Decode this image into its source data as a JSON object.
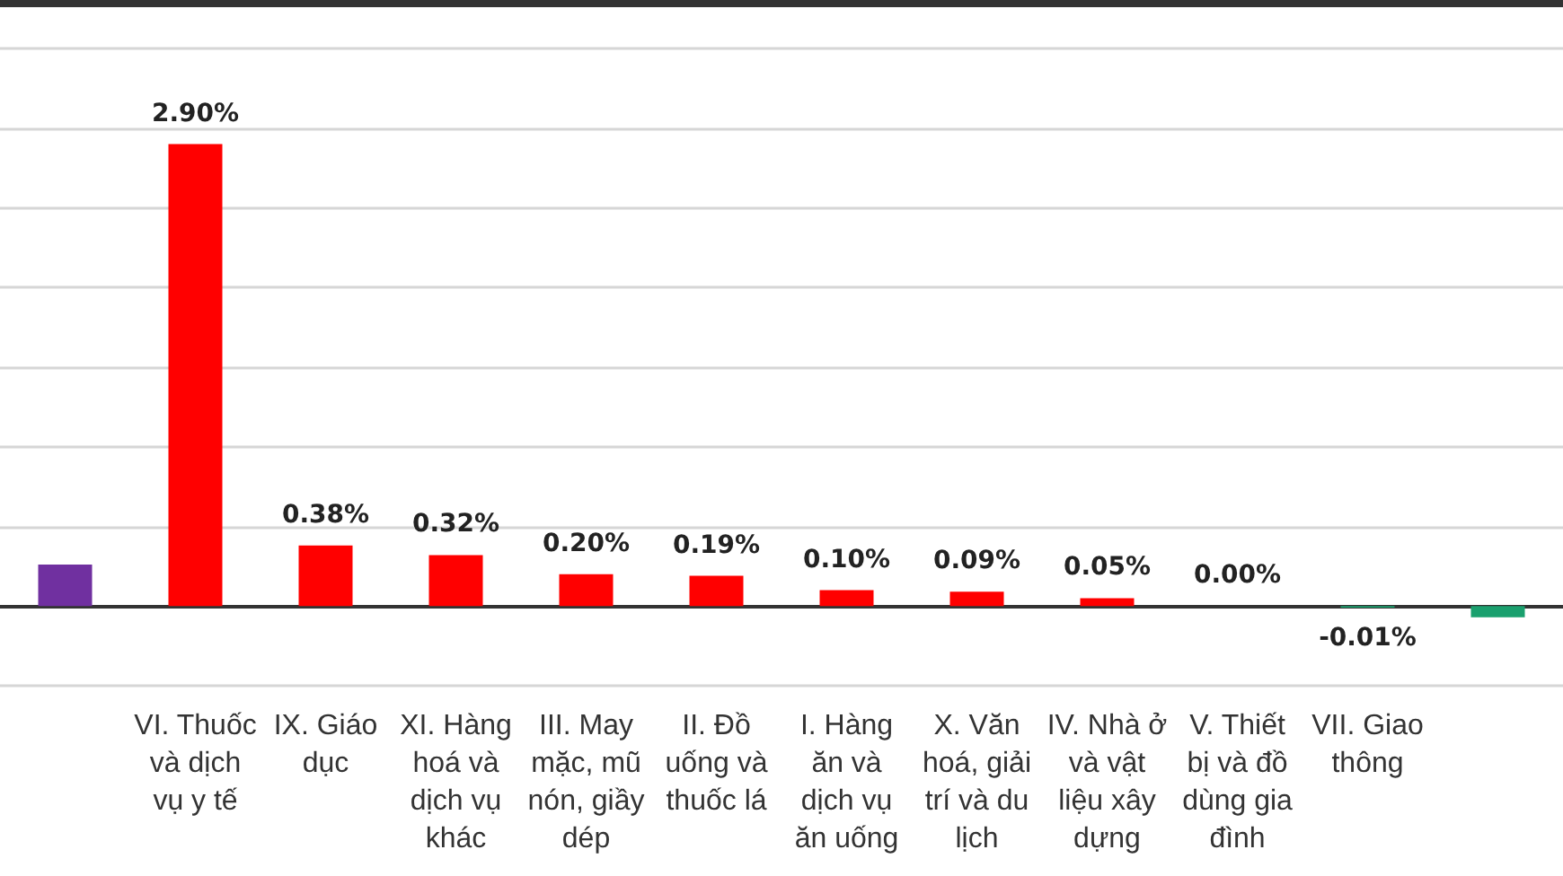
{
  "chart_data": {
    "type": "bar",
    "categories": [
      null,
      "VI. Thuốc\nvà dịch\nvụ y tế",
      "IX. Giáo\ndục",
      "XI. Hàng\nhoá và\ndịch vụ\nkhác",
      "III. May\nmặc, mũ\nnón, giầy\ndép",
      "II. Đồ\nuống và\nthuốc lá",
      "I. Hàng\năn và\ndịch vụ\năn uống",
      "X. Văn\nhoá, giải\ntrí và du\nlịch",
      "IV. Nhà ở\nvà vật\nliệu xây\ndựng",
      "V. Thiết\nbị và đồ\ndùng gia\nđình",
      "VII. Giao\nthông",
      null
    ],
    "values": [
      0.26,
      2.9,
      0.38,
      0.32,
      0.2,
      0.19,
      0.1,
      0.09,
      0.05,
      0.0,
      -0.01,
      -0.07
    ],
    "value_labels": [
      null,
      "2.90%",
      "0.38%",
      "0.32%",
      "0.20%",
      "0.19%",
      "0.10%",
      "0.09%",
      "0.05%",
      "0.00%",
      "-0.01%",
      null
    ],
    "colors": [
      "#7030a0",
      "#ff0000",
      "#ff0000",
      "#ff0000",
      "#ff0000",
      "#ff0000",
      "#ff0000",
      "#ff0000",
      "#ff0000",
      "#7030a0",
      "#1aa06e",
      "#1aa06e"
    ],
    "ylim": [
      -0.5,
      3.5
    ],
    "yticks": [
      {
        "value": -0.5,
        "label": null
      },
      {
        "value": 0,
        "label": null
      },
      {
        "value": 0.5,
        "label": null
      },
      {
        "value": 1,
        "label": null
      },
      {
        "value": 1.5,
        "label": null
      },
      {
        "value": 2,
        "label": null
      },
      {
        "value": 2.5,
        "label": null
      },
      {
        "value": 3,
        "label": null
      },
      {
        "value": 3.5,
        "label": null
      }
    ],
    "grid": "y",
    "tick_labels": "x"
  }
}
